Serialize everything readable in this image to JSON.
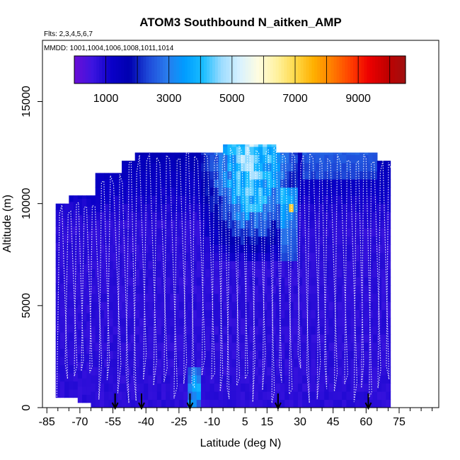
{
  "chart_data": {
    "type": "heatmap",
    "title": "ATOM3 Southbound N_aitken_AMP",
    "subtitle_flights": "Flts: 2,3,4,5,6,7",
    "subtitle_dates": "MMDD: 1001,1004,1006,1008,1011,1014",
    "xlabel": "Latitude (deg N)",
    "ylabel": "Altitude (m)",
    "xlim": [
      -87,
      93
    ],
    "ylim": [
      0,
      18000
    ],
    "x_ticks": [
      -85,
      -70,
      -55,
      -40,
      -25,
      -10,
      5,
      15,
      30,
      45,
      60,
      75
    ],
    "x_tick_labels": [
      "-85",
      "-70",
      "-55",
      "-40",
      "-25",
      "-10",
      "5",
      "15",
      "30",
      "45",
      "60",
      "75"
    ],
    "x_minor_ticks": [
      -80,
      -75,
      -65,
      -60,
      -50,
      -45,
      -35,
      -30,
      -20,
      -15,
      -5,
      0,
      10,
      20,
      25,
      35,
      40,
      50,
      55,
      65,
      70,
      80,
      85,
      90
    ],
    "y_ticks": [
      0,
      5000,
      10000,
      15000
    ],
    "y_tick_labels": [
      "0",
      "5000",
      "10000",
      "15000"
    ],
    "colorbar": {
      "min": 0,
      "max": 10500,
      "tick_values": [
        1000,
        3000,
        5000,
        7000,
        9000
      ],
      "tick_labels": [
        "1000",
        "3000",
        "5000",
        "7000",
        "9000"
      ],
      "divider_step": 1000,
      "palette": [
        "#6a0dd6",
        "#3c14e0",
        "#0a00c8",
        "#0000b0",
        "#1d48d8",
        "#2a7aec",
        "#009dff",
        "#19bdff",
        "#9cdcff",
        "#d8f2ff",
        "#fffce0",
        "#fff2a0",
        "#ffd94a",
        "#ffb000",
        "#ff7d00",
        "#ff4000",
        "#ee0000",
        "#c00000",
        "#a01010"
      ]
    },
    "arrow_latitudes": [
      -54,
      -42,
      -20,
      20,
      61
    ],
    "colors": {
      "background_purple": "#7b2ce0",
      "profile_line": "#ffffff",
      "arrow": "#000000"
    }
  }
}
